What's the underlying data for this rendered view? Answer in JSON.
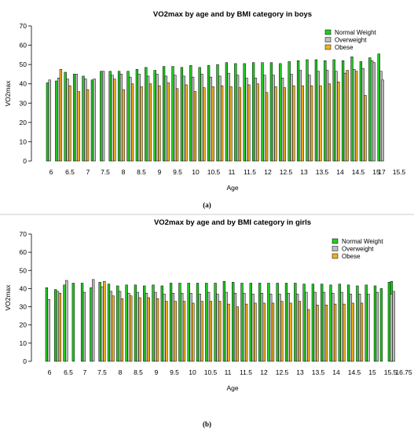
{
  "chart_data": [
    {
      "type": "bar",
      "title": "VO2max by age and by BMI category in boys",
      "xlabel": "Age",
      "ylabel": "VO2max",
      "ylim": [
        0,
        70
      ],
      "yticks": [
        0,
        10,
        20,
        30,
        40,
        50,
        60,
        70
      ],
      "legend": "top-right",
      "caption": "(a)",
      "categories": [
        "6",
        "6.25",
        "6.5",
        "6.75",
        "7",
        "7.25",
        "7.5",
        "7.75",
        "8",
        "8.25",
        "8.5",
        "8.75",
        "9",
        "9.25",
        "9.5",
        "9.75",
        "10",
        "10.25",
        "10.5",
        "10.75",
        "11",
        "11.25",
        "11.5",
        "11.75",
        "12",
        "12.25",
        "12.5",
        "12.75",
        "13",
        "13.25",
        "13.5",
        "13.75",
        "14",
        "14.25",
        "14.5",
        "14.75",
        "15",
        "15.25",
        "15.5",
        "16",
        "17"
      ],
      "tick_labels": [
        "6",
        "6.5",
        "7",
        "7.5",
        "8",
        "8.5",
        "9",
        "9.5",
        "10",
        "10.5",
        "11",
        "11.5",
        "12",
        "12.5",
        "13",
        "13.5",
        "14",
        "14.5",
        "15",
        "15.5",
        "17"
      ],
      "series": [
        {
          "name": "Normal Weight",
          "color": "#22cc22",
          "values": [
            40.5,
            41.5,
            46,
            45,
            44,
            42,
            46.5,
            46.5,
            46.5,
            46.5,
            47.5,
            48.5,
            47,
            49,
            49,
            48.5,
            49.5,
            48.5,
            49.5,
            50,
            51,
            50.5,
            50.5,
            51,
            51,
            51,
            50.5,
            51.5,
            52,
            52.5,
            52.5,
            52,
            52.5,
            52,
            54,
            51.5,
            53.5,
            55.5,
            null,
            null,
            null
          ]
        },
        {
          "name": "Overweight",
          "color": "#bebebe",
          "values": [
            42,
            43,
            42.5,
            45,
            42.5,
            42.5,
            46.5,
            44.5,
            45,
            43.5,
            45,
            44,
            45,
            44,
            44.5,
            44,
            43.5,
            45,
            43.5,
            44,
            45.5,
            44.5,
            43,
            43,
            44.5,
            44.5,
            43,
            45,
            47,
            44.5,
            46.5,
            47,
            46.5,
            45.5,
            47.5,
            48,
            52,
            46.5,
            null,
            51,
            42
          ]
        },
        {
          "name": "Obese",
          "color": "#f0b020",
          "values": [
            null,
            47.5,
            39,
            36,
            37,
            null,
            null,
            42.5,
            37,
            40,
            38.5,
            40,
            39,
            40.5,
            37.5,
            39.5,
            36,
            38,
            38.5,
            39,
            38.5,
            38,
            39.5,
            40,
            35.5,
            38.5,
            38,
            39,
            39,
            39,
            39,
            40,
            41,
            47,
            46.5,
            34,
            null,
            null,
            null,
            null,
            null
          ]
        }
      ]
    },
    {
      "type": "bar",
      "title": "VO2max by age and by BMI category in girls",
      "xlabel": "Age",
      "ylabel": "VO2max",
      "ylim": [
        0,
        70
      ],
      "yticks": [
        0,
        10,
        20,
        30,
        40,
        50,
        60,
        70
      ],
      "legend": "top-right",
      "caption": "(b)",
      "categories": [
        "6",
        "6.25",
        "6.5",
        "6.75",
        "7",
        "7.25",
        "7.5",
        "7.75",
        "8",
        "8.25",
        "8.5",
        "8.75",
        "9",
        "9.25",
        "9.5",
        "9.75",
        "10",
        "10.25",
        "10.5",
        "10.75",
        "11",
        "11.25",
        "11.5",
        "11.75",
        "12",
        "12.25",
        "12.5",
        "12.75",
        "13",
        "13.25",
        "13.5",
        "13.75",
        "14",
        "14.25",
        "14.5",
        "14.75",
        "15",
        "15.25",
        "15.5",
        "16.25",
        "16.75"
      ],
      "tick_labels": [
        "6",
        "6.5",
        "7",
        "7.5",
        "8",
        "8.5",
        "9",
        "9.5",
        "10",
        "10.5",
        "11",
        "11.5",
        "12",
        "12.5",
        "13",
        "13.5",
        "14",
        "14.5",
        "15",
        "15.5",
        "16.75"
      ],
      "series": [
        {
          "name": "Normal Weight",
          "color": "#22cc22",
          "values": [
            40.5,
            39.5,
            42,
            43,
            43,
            40.5,
            43.5,
            42.5,
            41.5,
            42,
            42,
            41.5,
            42,
            41.5,
            43,
            43,
            43,
            43,
            43,
            43,
            44,
            43.5,
            43,
            43,
            43,
            43,
            43,
            43,
            43,
            42.5,
            42.5,
            42.5,
            42,
            42.5,
            42,
            41.5,
            42,
            41.5,
            40,
            43.5,
            44
          ]
        },
        {
          "name": "Overweight",
          "color": "#bebebe",
          "values": [
            34,
            38.5,
            44.5,
            null,
            38,
            45,
            41,
            38.5,
            38.5,
            37.5,
            38,
            37.5,
            38,
            37,
            37.5,
            37.5,
            37.5,
            37,
            38,
            37,
            38,
            37.5,
            37.5,
            37,
            37.5,
            37,
            37,
            37.5,
            37,
            38,
            38,
            38,
            37.5,
            38,
            37,
            37,
            37,
            38,
            null,
            37,
            38.5
          ]
        },
        {
          "name": "Obese",
          "color": "#f0b020",
          "values": [
            null,
            37.5,
            null,
            null,
            null,
            null,
            44,
            36,
            34.5,
            36,
            35,
            35,
            34.5,
            33,
            33,
            33,
            32,
            33,
            33,
            33,
            31.5,
            30,
            31.5,
            32,
            32,
            32,
            33,
            32,
            33,
            28.5,
            31,
            31,
            31.5,
            31.5,
            32,
            32,
            null,
            null,
            null,
            null,
            null
          ]
        }
      ]
    }
  ]
}
